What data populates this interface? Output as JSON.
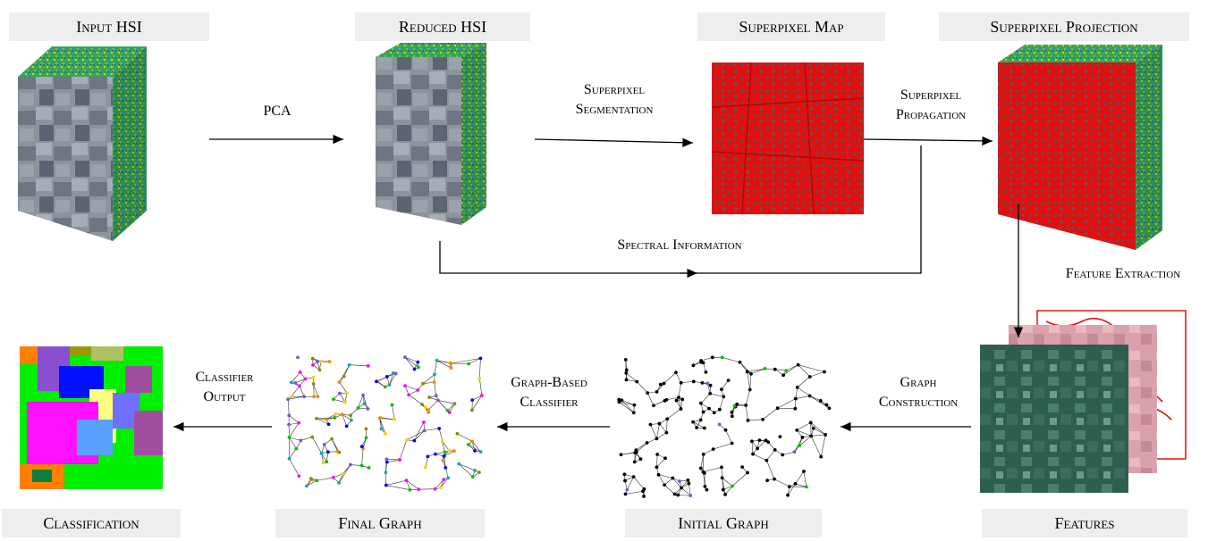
{
  "stages": {
    "input_hsi": "Input HSI",
    "reduced_hsi": "Reduced HSI",
    "superpixel_map": "Superpixel Map",
    "superpixel_projection": "Superpixel Projection",
    "features": "Features",
    "initial_graph": "Initial Graph",
    "final_graph": "Final Graph",
    "classification": "Classification"
  },
  "arrows": {
    "pca": "PCA",
    "superpixel_segmentation": [
      "Superpixel",
      "Segmentation"
    ],
    "superpixel_propagation": [
      "Superpixel",
      "Propagation"
    ],
    "spectral_information": "Spectral Information",
    "feature_extraction": "Feature Extraction",
    "graph_construction": [
      "Graph",
      "Construction"
    ],
    "graph_based_classifier": [
      "Graph-Based",
      "Classifier"
    ],
    "classifier_output": [
      "Classifier",
      "Output"
    ]
  },
  "colors": {
    "label_bg": "#eeeeee",
    "superpixel_red": "#e01010",
    "cube_face_green": "#3aa850",
    "cube_face_gray": "#8a8f98"
  }
}
